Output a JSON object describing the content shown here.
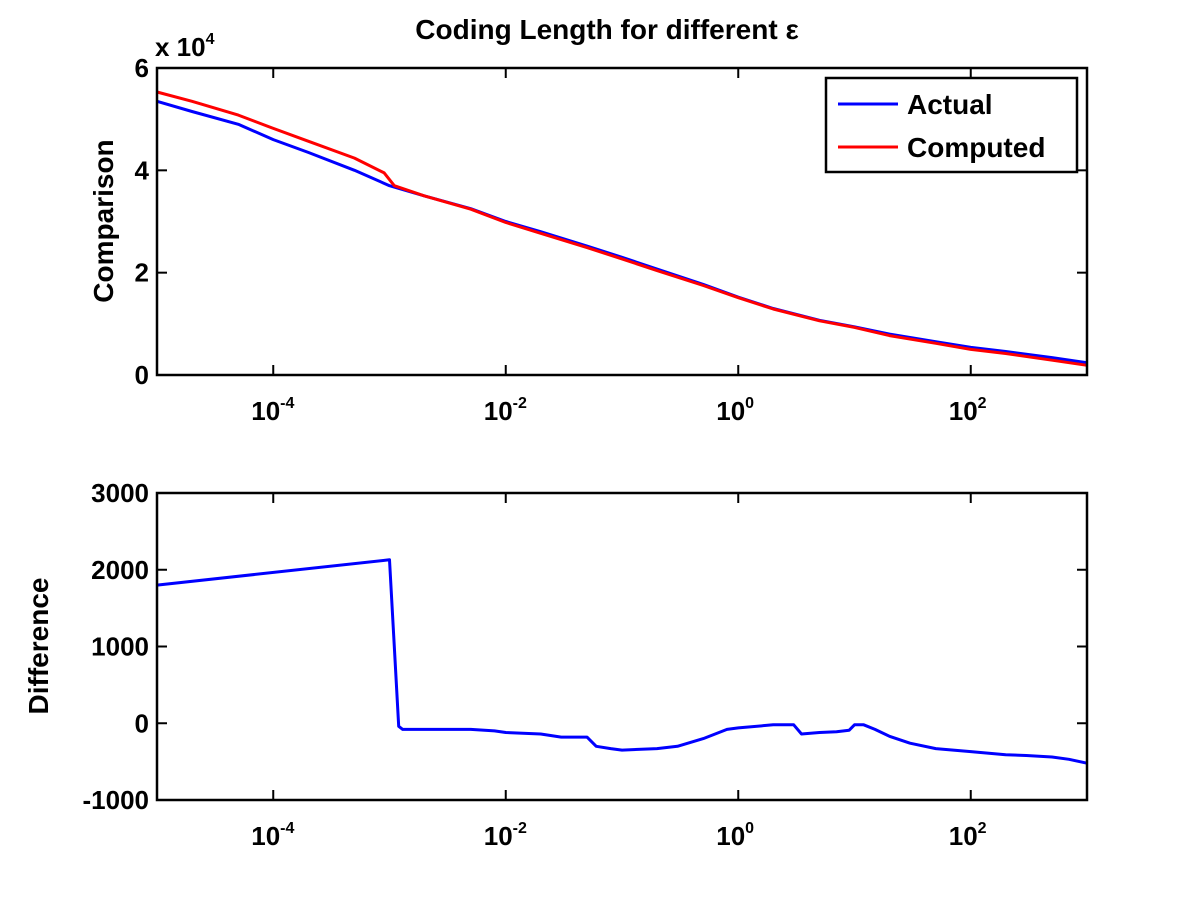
{
  "figure": {
    "title_prefix": "Coding Length for different ",
    "title_symbol": "ε"
  },
  "colors": {
    "actual": "#0000ff",
    "computed": "#ff0000",
    "difference": "#0000ff"
  },
  "chart_data": [
    {
      "type": "line",
      "xscale": "log",
      "xlim": [
        1e-05,
        1000
      ],
      "ylim": [
        0,
        60000
      ],
      "ylabel": "Comparison",
      "yticks": [
        0,
        20000,
        40000,
        60000
      ],
      "ytick_labels": [
        "0",
        "2",
        "4",
        "6"
      ],
      "y_multiplier_base": "x 10",
      "y_multiplier_exp": "4",
      "xtick_values": [
        0.0001,
        0.01,
        1,
        100
      ],
      "xtick_bases": [
        "10",
        "10",
        "10",
        "10"
      ],
      "xtick_exps": [
        "-4",
        "-2",
        "0",
        "2"
      ],
      "legend": {
        "position": "top-right"
      },
      "series": [
        {
          "name": "Actual",
          "color": "#0000ff",
          "points": [
            [
              1e-05,
              53500
            ],
            [
              2e-05,
              51500
            ],
            [
              5e-05,
              49000
            ],
            [
              0.0001,
              46000
            ],
            [
              0.0002,
              43500
            ],
            [
              0.0005,
              40000
            ],
            [
              0.001,
              37000
            ],
            [
              0.002,
              35000
            ],
            [
              0.005,
              32500
            ],
            [
              0.01,
              30000
            ],
            [
              0.02,
              28000
            ],
            [
              0.05,
              25200
            ],
            [
              0.1,
              23000
            ],
            [
              0.2,
              20700
            ],
            [
              0.5,
              17700
            ],
            [
              1,
              15200
            ],
            [
              2,
              13000
            ],
            [
              5,
              10700
            ],
            [
              10,
              9400
            ],
            [
              20,
              8000
            ],
            [
              50,
              6500
            ],
            [
              100,
              5400
            ],
            [
              200,
              4600
            ],
            [
              500,
              3400
            ],
            [
              1000,
              2400
            ]
          ]
        },
        {
          "name": "Computed",
          "color": "#ff0000",
          "points": [
            [
              1e-05,
              55300
            ],
            [
              2e-05,
              53500
            ],
            [
              5e-05,
              50800
            ],
            [
              0.0001,
              48200
            ],
            [
              0.0002,
              45700
            ],
            [
              0.0005,
              42400
            ],
            [
              0.0009,
              39500
            ],
            [
              0.0011,
              37000
            ],
            [
              0.002,
              35000
            ],
            [
              0.005,
              32400
            ],
            [
              0.01,
              29800
            ],
            [
              0.02,
              27700
            ],
            [
              0.05,
              24900
            ],
            [
              0.1,
              22700
            ],
            [
              0.2,
              20400
            ],
            [
              0.5,
              17500
            ],
            [
              1,
              15100
            ],
            [
              2,
              12900
            ],
            [
              5,
              10600
            ],
            [
              10,
              9300
            ],
            [
              20,
              7700
            ],
            [
              50,
              6200
            ],
            [
              100,
              5000
            ],
            [
              200,
              4200
            ],
            [
              500,
              2900
            ],
            [
              1000,
              1900
            ]
          ]
        }
      ]
    },
    {
      "type": "line",
      "xscale": "log",
      "xlim": [
        1e-05,
        1000
      ],
      "ylim": [
        -1000,
        3000
      ],
      "ylabel": "Difference",
      "yticks": [
        -1000,
        0,
        1000,
        2000,
        3000
      ],
      "ytick_labels": [
        "-1000",
        "0",
        "1000",
        "2000",
        "3000"
      ],
      "xtick_values": [
        0.0001,
        0.01,
        1,
        100
      ],
      "xtick_bases": [
        "10",
        "10",
        "10",
        "10"
      ],
      "xtick_exps": [
        "-4",
        "-2",
        "0",
        "2"
      ],
      "series": [
        {
          "color": "#0000ff",
          "points": [
            [
              1e-05,
              1800
            ],
            [
              0.001,
              2130
            ],
            [
              0.0011,
              1000
            ],
            [
              0.0012,
              -40
            ],
            [
              0.0013,
              -80
            ],
            [
              0.003,
              -80
            ],
            [
              0.005,
              -80
            ],
            [
              0.008,
              -100
            ],
            [
              0.01,
              -120
            ],
            [
              0.02,
              -140
            ],
            [
              0.03,
              -180
            ],
            [
              0.05,
              -180
            ],
            [
              0.06,
              -300
            ],
            [
              0.08,
              -330
            ],
            [
              0.1,
              -350
            ],
            [
              0.2,
              -330
            ],
            [
              0.3,
              -300
            ],
            [
              0.5,
              -200
            ],
            [
              0.8,
              -80
            ],
            [
              1,
              -60
            ],
            [
              2,
              -20
            ],
            [
              3,
              -20
            ],
            [
              3.5,
              -140
            ],
            [
              5,
              -120
            ],
            [
              7,
              -110
            ],
            [
              9,
              -90
            ],
            [
              10,
              -20
            ],
            [
              12,
              -20
            ],
            [
              15,
              -80
            ],
            [
              20,
              -170
            ],
            [
              30,
              -260
            ],
            [
              50,
              -330
            ],
            [
              100,
              -370
            ],
            [
              200,
              -410
            ],
            [
              300,
              -420
            ],
            [
              500,
              -440
            ],
            [
              700,
              -470
            ],
            [
              1000,
              -520
            ]
          ]
        }
      ]
    }
  ]
}
